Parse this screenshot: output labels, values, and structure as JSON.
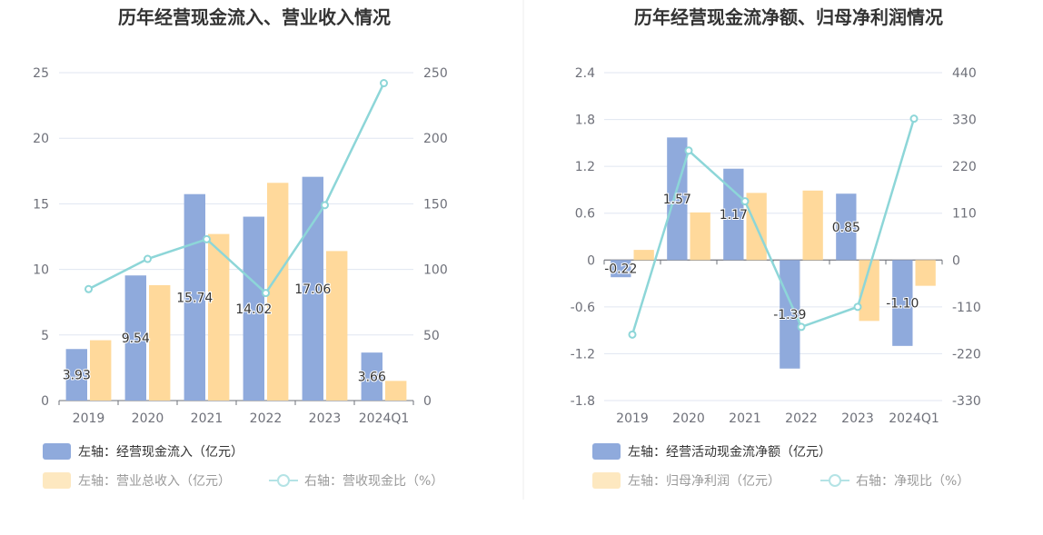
{
  "colors": {
    "bar1": "#8faadc",
    "bar2": "#ffd99b",
    "line": "#8dd6d8",
    "grid": "#e0e6f1",
    "axis": "#6e7079",
    "divider": "#eeeeee"
  },
  "chart_data": [
    {
      "type": "bar",
      "title": "历年经营现金流入、营业收入情况",
      "categories": [
        "2019",
        "2020",
        "2021",
        "2022",
        "2023",
        "2024Q1"
      ],
      "left_ylim": [
        0,
        25
      ],
      "left_ticks": [
        "0",
        "5",
        "10",
        "15",
        "20",
        "25"
      ],
      "right_ylim": [
        0,
        250
      ],
      "right_ticks": [
        "0",
        "50",
        "100",
        "150",
        "200",
        "250"
      ],
      "grid": true,
      "legend_position": "bottom-left",
      "series": [
        {
          "name": "左轴：经营现金流入（亿元）",
          "kind": "bar",
          "axis": "left",
          "values": [
            3.93,
            9.54,
            15.74,
            14.02,
            17.06,
            3.66
          ],
          "labels": [
            "3.93",
            "9.54",
            "15.74",
            "14.02",
            "17.06",
            "3.66"
          ]
        },
        {
          "name": "左轴：营业总收入（亿元）",
          "kind": "bar",
          "axis": "left",
          "values": [
            4.6,
            8.8,
            12.7,
            16.6,
            11.4,
            1.5
          ]
        },
        {
          "name": "右轴：营收现金比（%）",
          "kind": "line",
          "axis": "right",
          "values": [
            85,
            108,
            123,
            82,
            149,
            242
          ]
        }
      ]
    },
    {
      "type": "bar",
      "title": "历年经营现金流净额、归母净利润情况",
      "categories": [
        "2019",
        "2020",
        "2021",
        "2022",
        "2023",
        "2024Q1"
      ],
      "left_ylim": [
        -1.8,
        2.4
      ],
      "left_ticks": [
        "-1.8",
        "-1.2",
        "-0.6",
        "0",
        "0.6",
        "1.2",
        "1.8",
        "2.4"
      ],
      "right_ylim": [
        -330,
        440
      ],
      "right_ticks": [
        "-330",
        "-220",
        "-110",
        "0",
        "110",
        "220",
        "330",
        "440"
      ],
      "grid": true,
      "legend_position": "bottom-left",
      "series": [
        {
          "name": "左轴：经营活动现金流净额（亿元）",
          "kind": "bar",
          "axis": "left",
          "values": [
            -0.22,
            1.57,
            1.17,
            -1.39,
            0.85,
            -1.1
          ],
          "labels": [
            "-0.22",
            "1.57",
            "1.17",
            "-1.39",
            "0.85",
            "-1.10"
          ]
        },
        {
          "name": "左轴：归母净利润（亿元）",
          "kind": "bar",
          "axis": "left",
          "values": [
            0.13,
            0.61,
            0.86,
            0.89,
            -0.78,
            -0.33
          ]
        },
        {
          "name": "右轴：净现比（%）",
          "kind": "line",
          "axis": "right",
          "values": [
            -175,
            257,
            138,
            -157,
            -110,
            332
          ]
        }
      ]
    }
  ]
}
